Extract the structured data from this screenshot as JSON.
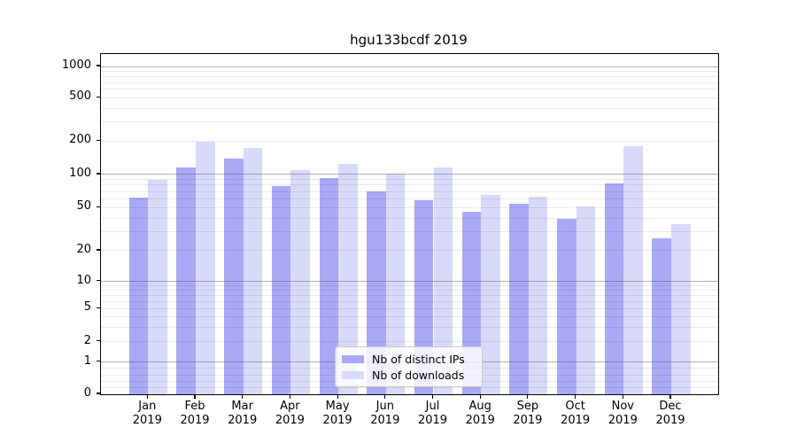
{
  "chart": {
    "title": "hgu133bcdf 2019",
    "legend": [
      {
        "label": "Nb of distinct IPs",
        "color": "#a9a9f6"
      },
      {
        "label": "Nb of downloads",
        "color": "#d9d9f9"
      }
    ]
  },
  "chart_data": {
    "type": "bar",
    "title": "hgu133bcdf 2019",
    "categories": [
      "Jan 2019",
      "Feb 2019",
      "Mar 2019",
      "Apr 2019",
      "May 2019",
      "Jun 2019",
      "Jul 2019",
      "Aug 2019",
      "Sep 2019",
      "Oct 2019",
      "Nov 2019",
      "Dec 2019"
    ],
    "series": [
      {
        "name": "Nb of distinct IPs",
        "color": "#a9a9f6",
        "values": [
          62,
          116,
          138,
          78,
          92,
          70,
          58,
          46,
          54,
          39,
          83,
          26
        ]
      },
      {
        "name": "Nb of downloads",
        "color": "#d9d9f9",
        "values": [
          89,
          198,
          175,
          110,
          125,
          101,
          116,
          65,
          63,
          51,
          181,
          35
        ]
      }
    ],
    "xlabel": "",
    "ylabel": "",
    "yscale": "symlog",
    "yticks": [
      0,
      1,
      2,
      5,
      10,
      20,
      50,
      100,
      200,
      500,
      1000
    ],
    "ylim": [
      0,
      1300
    ],
    "grid": true,
    "legend_position": "inside lower-center",
    "yscale_anchors": [
      {
        "value": 0,
        "frac": 1.0
      },
      {
        "value": 1,
        "frac": 0.9055
      },
      {
        "value": 2,
        "frac": 0.846
      },
      {
        "value": 5,
        "frac": 0.748
      },
      {
        "value": 10,
        "frac": 0.668
      },
      {
        "value": 20,
        "frac": 0.578
      },
      {
        "value": 50,
        "frac": 0.451
      },
      {
        "value": 100,
        "frac": 0.354
      },
      {
        "value": 200,
        "frac": 0.256
      },
      {
        "value": 500,
        "frac": 0.128
      },
      {
        "value": 1000,
        "frac": 0.0365
      }
    ]
  }
}
